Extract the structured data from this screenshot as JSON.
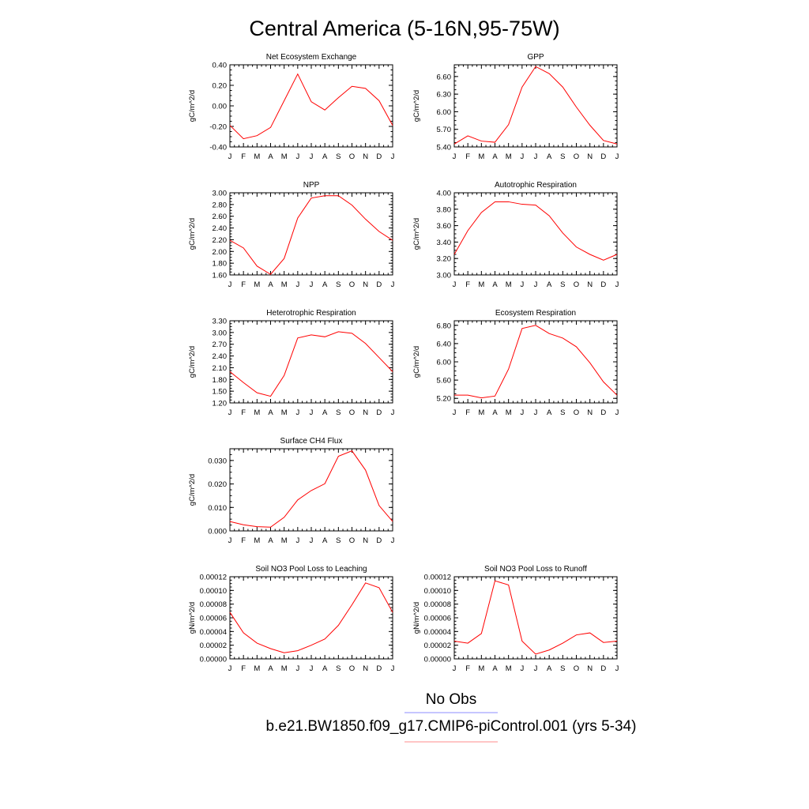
{
  "title": "Central America (5-16N,95-75W)",
  "legend": {
    "entries": [
      {
        "label": "No Obs",
        "color": "#8c8cff"
      },
      {
        "label": "b.e21.BW1850.f09_g17.CMIP6-piControl.001 (yrs 5-34)",
        "color": "#ff8c8c"
      }
    ]
  },
  "colors": {
    "series": "#ff0000"
  },
  "chart_data": [
    {
      "type": "line",
      "title": "Net Ecosystem Exchange",
      "ylabel": "gC/m^2/d",
      "categories": [
        "J",
        "F",
        "M",
        "A",
        "M",
        "J",
        "J",
        "A",
        "S",
        "O",
        "N",
        "D",
        "J"
      ],
      "ylim": [
        -0.4,
        0.4
      ],
      "yticks": [
        "-0.40",
        "-0.20",
        "0.00",
        "0.20",
        "0.40"
      ],
      "values": [
        -0.19,
        -0.32,
        -0.29,
        -0.21,
        0.05,
        0.31,
        0.04,
        -0.04,
        0.08,
        0.19,
        0.17,
        0.05,
        -0.19
      ]
    },
    {
      "type": "line",
      "title": "GPP",
      "ylabel": "gC/m^2/d",
      "categories": [
        "J",
        "F",
        "M",
        "A",
        "M",
        "J",
        "J",
        "A",
        "S",
        "O",
        "N",
        "D",
        "J"
      ],
      "ylim": [
        5.4,
        6.8
      ],
      "yticks": [
        "5.40",
        "5.70",
        "6.00",
        "6.30",
        "6.60"
      ],
      "values": [
        5.45,
        5.59,
        5.5,
        5.48,
        5.78,
        6.42,
        6.77,
        6.65,
        6.42,
        6.08,
        5.77,
        5.51,
        5.45
      ]
    },
    {
      "type": "line",
      "title": "NPP",
      "ylabel": "gC/m^2/d",
      "categories": [
        "J",
        "F",
        "M",
        "A",
        "M",
        "J",
        "J",
        "A",
        "S",
        "O",
        "N",
        "D",
        "J"
      ],
      "ylim": [
        1.6,
        3.0
      ],
      "yticks": [
        "1.60",
        "1.80",
        "2.00",
        "2.20",
        "2.40",
        "2.60",
        "2.80",
        "3.00"
      ],
      "values": [
        2.19,
        2.06,
        1.75,
        1.61,
        1.88,
        2.57,
        2.91,
        2.95,
        2.95,
        2.79,
        2.55,
        2.34,
        2.19
      ]
    },
    {
      "type": "line",
      "title": "Autotrophic Respiration",
      "ylabel": "gC/m^2/d",
      "categories": [
        "J",
        "F",
        "M",
        "A",
        "M",
        "J",
        "J",
        "A",
        "S",
        "O",
        "N",
        "D",
        "J"
      ],
      "ylim": [
        3.0,
        4.0
      ],
      "yticks": [
        "3.00",
        "3.20",
        "3.40",
        "3.60",
        "3.80",
        "4.00"
      ],
      "values": [
        3.25,
        3.54,
        3.76,
        3.89,
        3.89,
        3.86,
        3.85,
        3.72,
        3.51,
        3.34,
        3.25,
        3.18,
        3.25
      ]
    },
    {
      "type": "line",
      "title": "Heterotrophic Respiration",
      "ylabel": "gC/m^2/d",
      "categories": [
        "J",
        "F",
        "M",
        "A",
        "M",
        "J",
        "J",
        "A",
        "S",
        "O",
        "N",
        "D",
        "J"
      ],
      "ylim": [
        1.2,
        3.3
      ],
      "yticks": [
        "1.20",
        "1.50",
        "1.80",
        "2.10",
        "2.40",
        "2.70",
        "3.00",
        "3.30"
      ],
      "values": [
        2.0,
        1.72,
        1.46,
        1.37,
        1.9,
        2.86,
        2.94,
        2.89,
        3.02,
        2.98,
        2.72,
        2.36,
        2.0
      ]
    },
    {
      "type": "line",
      "title": "Ecosystem Respiration",
      "ylabel": "gC/m^2/d",
      "categories": [
        "J",
        "F",
        "M",
        "A",
        "M",
        "J",
        "J",
        "A",
        "S",
        "O",
        "N",
        "D",
        "J"
      ],
      "ylim": [
        5.1,
        6.9
      ],
      "yticks": [
        "5.20",
        "5.60",
        "6.00",
        "6.40",
        "6.80"
      ],
      "values": [
        5.27,
        5.27,
        5.21,
        5.25,
        5.84,
        6.73,
        6.8,
        6.62,
        6.52,
        6.33,
        5.98,
        5.56,
        5.27
      ]
    },
    {
      "type": "line",
      "title": "Surface CH4 Flux",
      "ylabel": "gC/m^2/d",
      "categories": [
        "J",
        "F",
        "M",
        "A",
        "M",
        "J",
        "J",
        "A",
        "S",
        "O",
        "N",
        "D",
        "J"
      ],
      "ylim": [
        0.0,
        0.035
      ],
      "yticks": [
        "0.000",
        "0.010",
        "0.020",
        "0.030"
      ],
      "values": [
        0.004,
        0.0026,
        0.0018,
        0.0016,
        0.0058,
        0.0132,
        0.0172,
        0.0201,
        0.0318,
        0.0341,
        0.0259,
        0.0108,
        0.004
      ]
    },
    {
      "type": "line",
      "title": "Soil NO3 Pool Loss to Leaching",
      "ylabel": "gN/m^2/d",
      "categories": [
        "J",
        "F",
        "M",
        "A",
        "M",
        "J",
        "J",
        "A",
        "S",
        "O",
        "N",
        "D",
        "J"
      ],
      "ylim": [
        0.0,
        0.00012
      ],
      "yticks": [
        "0.00000",
        "0.00002",
        "0.00004",
        "0.00006",
        "0.00008",
        "0.00010",
        "0.00012"
      ],
      "values": [
        6.8e-05,
        3.8e-05,
        2.3e-05,
        1.5e-05,
        9e-06,
        1.2e-05,
        2e-05,
        2.9e-05,
        4.9e-05,
        7.9e-05,
        0.000111,
        0.000104,
        6.8e-05
      ]
    },
    {
      "type": "line",
      "title": "Soil NO3 Pool Loss to Runoff",
      "ylabel": "gN/m^2/d",
      "categories": [
        "J",
        "F",
        "M",
        "A",
        "M",
        "J",
        "J",
        "A",
        "S",
        "O",
        "N",
        "D",
        "J"
      ],
      "ylim": [
        0.0,
        0.00012
      ],
      "yticks": [
        "0.00000",
        "0.00002",
        "0.00004",
        "0.00006",
        "0.00008",
        "0.00010",
        "0.00012"
      ],
      "values": [
        2.6e-05,
        2.3e-05,
        3.7e-05,
        0.000114,
        0.000108,
        2.6e-05,
        7e-06,
        1.3e-05,
        2.3e-05,
        3.5e-05,
        3.8e-05,
        2.4e-05,
        2.6e-05
      ]
    }
  ]
}
